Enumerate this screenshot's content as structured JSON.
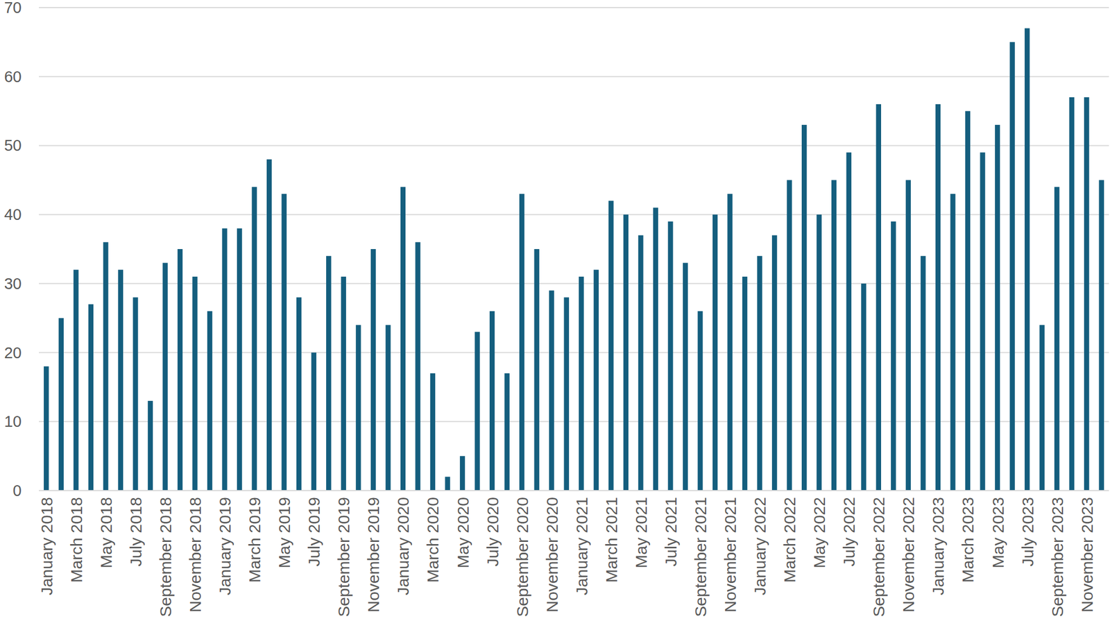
{
  "chart_data": {
    "type": "bar",
    "categories": [
      "January 2018",
      null,
      "March 2018",
      null,
      "May 2018",
      null,
      "July 2018",
      null,
      "September 2018",
      null,
      "November 2018",
      null,
      "January 2019",
      null,
      "March 2019",
      null,
      "May 2019",
      null,
      "July 2019",
      null,
      "September 2019",
      null,
      "November 2019",
      null,
      "January 2020",
      null,
      "March 2020",
      null,
      "May 2020",
      null,
      "July 2020",
      null,
      "September 2020",
      null,
      "November 2020",
      null,
      "January 2021",
      null,
      "March 2021",
      null,
      "May 2021",
      null,
      "July 2021",
      null,
      "September 2021",
      null,
      "November 2021",
      null,
      "January 2022",
      null,
      "March 2022",
      null,
      "May 2022",
      null,
      "July 2022",
      null,
      "September 2022",
      null,
      "November 2022",
      null,
      "January 2023",
      null,
      "March 2023",
      null,
      "May 2023",
      null,
      "July 2023",
      null,
      "September 2023",
      null,
      "November 2023",
      null
    ],
    "values": [
      18,
      25,
      32,
      27,
      36,
      32,
      28,
      13,
      33,
      35,
      31,
      26,
      38,
      38,
      44,
      48,
      43,
      28,
      20,
      34,
      31,
      24,
      35,
      24,
      44,
      36,
      17,
      2,
      5,
      23,
      26,
      17,
      43,
      35,
      29,
      28,
      31,
      32,
      42,
      40,
      37,
      41,
      39,
      33,
      26,
      40,
      43,
      31,
      34,
      37,
      45,
      53,
      40,
      45,
      49,
      30,
      56,
      39,
      45,
      34,
      56,
      43,
      55,
      49,
      53,
      65,
      67,
      24,
      44,
      57,
      57,
      45
    ],
    "color": "#145e7e",
    "ylim": [
      0,
      70
    ],
    "yticks": [
      0,
      10,
      20,
      30,
      40,
      50,
      60,
      70
    ],
    "grid": true
  }
}
